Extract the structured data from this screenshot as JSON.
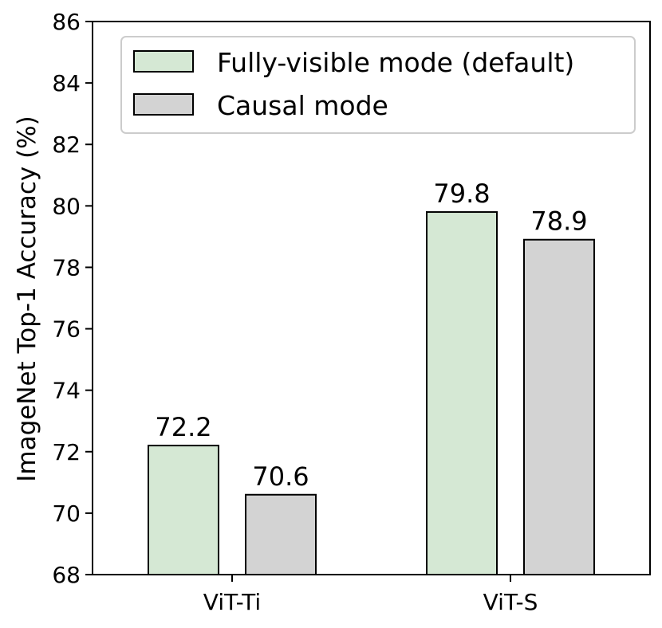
{
  "chart_data": {
    "type": "bar",
    "title": "",
    "xlabel": "",
    "ylabel": "ImageNet Top-1 Accuracy (%)",
    "ylim": [
      68,
      86
    ],
    "yticks": [
      68,
      70,
      72,
      74,
      76,
      78,
      80,
      82,
      84,
      86
    ],
    "categories": [
      "ViT-Ti",
      "ViT-S"
    ],
    "series": [
      {
        "name": "Fully-visible mode (default)",
        "values": [
          72.2,
          79.8
        ],
        "color": "#d5e8d4"
      },
      {
        "name": "Causal mode",
        "values": [
          70.6,
          78.9
        ],
        "color": "#d3d3d3"
      }
    ],
    "data_labels": [
      "72.2",
      "79.8",
      "70.6",
      "78.9"
    ],
    "legend_position": "top-right",
    "grid": false
  }
}
